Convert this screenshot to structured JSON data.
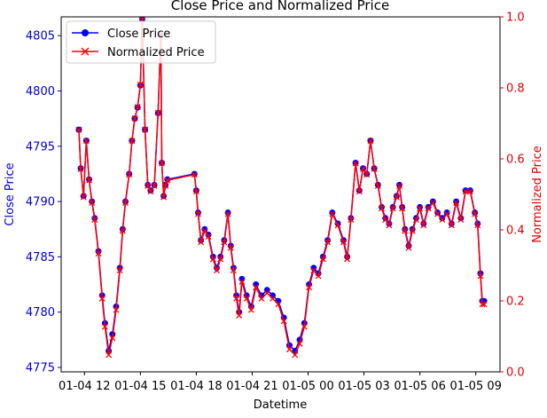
{
  "chart_data": {
    "type": "line",
    "title": "Close Price and Normalized Price",
    "xlabel": "Datetime",
    "ylabel_left": "Close Price",
    "ylabel_right": "Normalized Price",
    "x_tick_labels": [
      "01-04 12",
      "01-04 15",
      "01-04 18",
      "01-04 21",
      "01-05 00",
      "01-05 03",
      "01-05 06",
      "01-05 09"
    ],
    "x_tick_hours": [
      12,
      15,
      18,
      21,
      24,
      27,
      30,
      33
    ],
    "xlim_hours": [
      10.75,
      34.3
    ],
    "ylim_left": [
      4774.6,
      4806.7
    ],
    "yticks_left": [
      4775,
      4780,
      4785,
      4790,
      4795,
      4800,
      4805
    ],
    "ylim_right": [
      0.0,
      1.0
    ],
    "yticks_right": [
      0.0,
      0.2,
      0.4,
      0.6,
      0.8,
      1.0
    ],
    "left_axis_color": "#0000cc",
    "right_axis_color": "#dd0000",
    "legend_position": "upper left",
    "series": [
      {
        "name": "Close Price",
        "axis": "left",
        "color": "#0000ff",
        "marker": "circle"
      },
      {
        "name": "Normalized Price",
        "axis": "right",
        "color": "#ff0000",
        "marker": "x"
      }
    ],
    "hours": [
      11.7,
      11.8,
      11.95,
      12.1,
      12.25,
      12.4,
      12.55,
      12.75,
      12.95,
      13.1,
      13.3,
      13.5,
      13.7,
      13.9,
      14.05,
      14.2,
      14.4,
      14.55,
      14.7,
      14.85,
      15.0,
      15.1,
      15.25,
      15.4,
      15.55,
      15.75,
      15.95,
      16.1,
      16.15,
      16.25,
      16.35,
      16.45,
      17.9,
      18.0,
      18.1,
      18.25,
      18.45,
      18.65,
      18.9,
      19.1,
      19.3,
      19.5,
      19.7,
      19.85,
      20.0,
      20.15,
      20.3,
      20.45,
      20.7,
      20.95,
      21.2,
      21.5,
      21.8,
      22.1,
      22.4,
      22.7,
      23.0,
      23.3,
      23.55,
      23.8,
      24.05,
      24.3,
      24.55,
      24.8,
      25.05,
      25.3,
      25.6,
      25.9,
      26.1,
      26.3,
      26.55,
      26.75,
      26.95,
      27.15,
      27.35,
      27.55,
      27.75,
      27.95,
      28.15,
      28.35,
      28.55,
      28.75,
      28.9,
      29.05,
      29.2,
      29.4,
      29.6,
      29.8,
      30.0,
      30.2,
      30.45,
      30.7,
      30.95,
      31.2,
      31.45,
      31.7,
      31.95,
      32.2,
      32.45,
      32.7,
      32.95,
      33.1,
      33.25,
      33.35,
      33.45
    ],
    "close": [
      4796.5,
      4793.0,
      4790.5,
      4795.5,
      4792.0,
      4790.0,
      4788.5,
      4785.5,
      4781.5,
      4779.0,
      4776.5,
      4778.0,
      4780.5,
      4784.0,
      4787.5,
      4790.0,
      4792.5,
      4795.5,
      4797.5,
      4798.5,
      4800.5,
      4806.5,
      4796.5,
      4791.5,
      4791.0,
      4791.5,
      4798.0,
      4805.0,
      4793.5,
      4790.5,
      4791.5,
      4792.0,
      4792.5,
      4791.0,
      4789.0,
      4786.5,
      4787.5,
      4787.0,
      4785.0,
      4784.0,
      4785.0,
      4786.5,
      4789.0,
      4786.0,
      4784.0,
      4781.5,
      4780.0,
      4783.0,
      4781.5,
      4780.5,
      4782.5,
      4781.5,
      4782.0,
      4781.5,
      4781.0,
      4779.5,
      4777.0,
      4776.5,
      4777.5,
      4779.0,
      4782.5,
      4784.0,
      4783.5,
      4785.0,
      4786.5,
      4789.0,
      4788.0,
      4786.5,
      4785.0,
      4788.5,
      4793.5,
      4791.0,
      4793.0,
      4792.5,
      4795.5,
      4793.0,
      4791.5,
      4789.5,
      4788.5,
      4788.0,
      4789.5,
      4790.5,
      4791.5,
      4789.5,
      4787.5,
      4786.0,
      4787.5,
      4788.5,
      4789.5,
      4788.0,
      4789.5,
      4790.0,
      4789.0,
      4788.5,
      4789.0,
      4788.0,
      4790.0,
      4788.5,
      4791.0,
      4791.0,
      4789.0,
      4788.0,
      4783.5,
      4781.0,
      4781.0
    ],
    "normalized_range": [
      4775.0,
      4806.5
    ]
  }
}
